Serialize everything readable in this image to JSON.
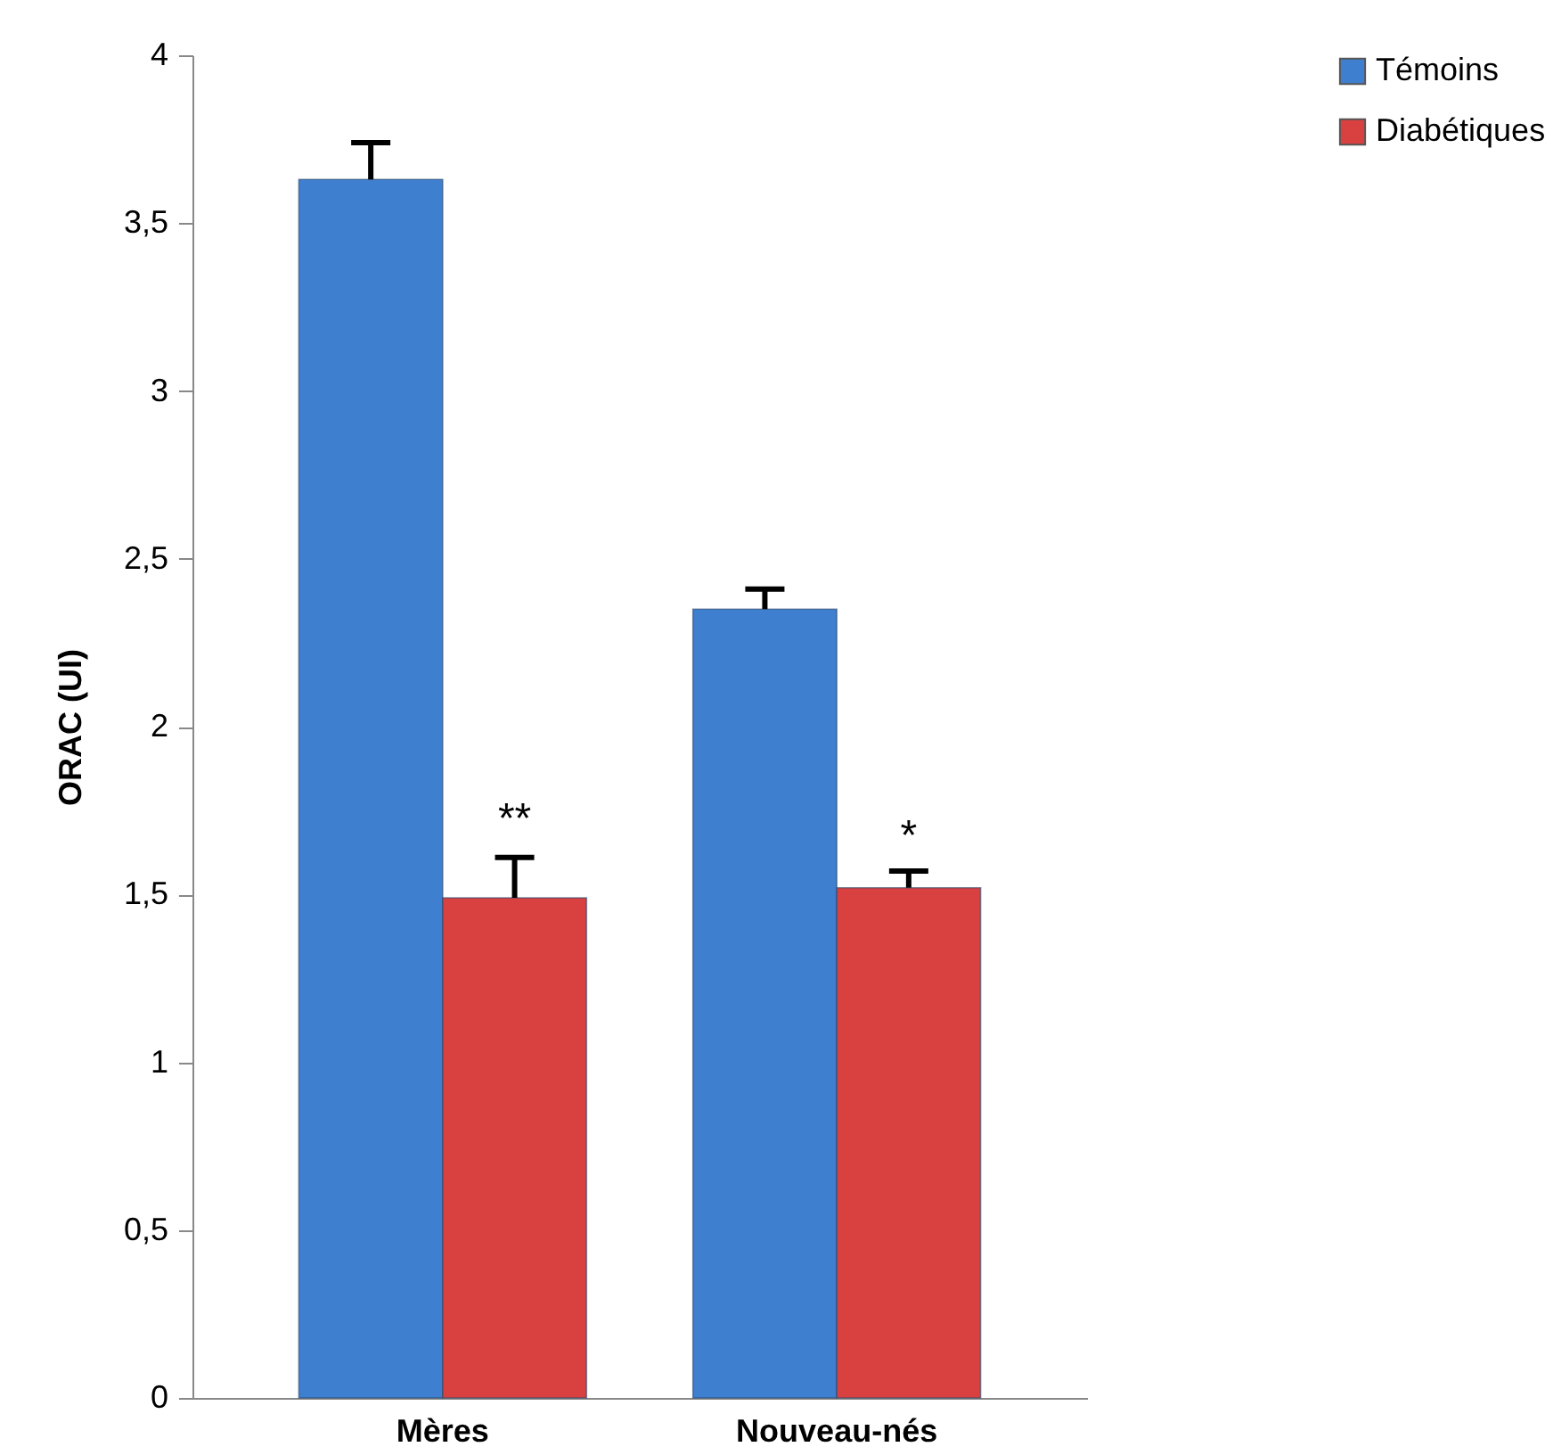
{
  "chart_data": {
    "type": "bar",
    "ylabel": "ORAC (UI)",
    "categories": [
      "Mères",
      "Nouveau-nés"
    ],
    "series": [
      {
        "name": "Témoins",
        "color": "#3f7fcf",
        "values": [
          3.63,
          2.35
        ],
        "errors": [
          [
            3.63,
            3.74
          ],
          [
            2.35,
            2.41
          ]
        ]
      },
      {
        "name": "Diabétiques",
        "color": "#d94040",
        "values": [
          1.49,
          1.52
        ],
        "errors": [
          [
            1.49,
            1.61
          ],
          [
            1.52,
            1.57
          ]
        ]
      }
    ],
    "ylim": [
      0,
      4
    ],
    "yticks": [
      0,
      {
        "value": 0.5,
        "label": "0,5"
      },
      1,
      {
        "value": 1.5,
        "label": "1,5"
      },
      2,
      {
        "value": 2.5,
        "label": "2,5"
      },
      3,
      {
        "value": 3.5,
        "label": "3,5"
      },
      4
    ],
    "annotations": [
      {
        "text": "**",
        "x": "Mères",
        "y": 1.72
      },
      {
        "text": "*",
        "x": "Nouveau-nés",
        "y": 1.67
      }
    ],
    "grid": false,
    "legend": "top right"
  }
}
